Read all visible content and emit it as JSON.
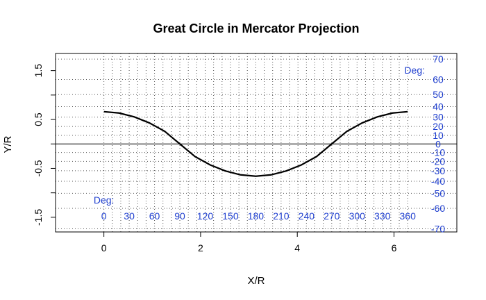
{
  "chart_data": {
    "type": "line",
    "title": "Great Circle in Mercator Projection",
    "xlabel": "X/R",
    "ylabel": "Y/R",
    "xlim": [
      -1.0,
      7.3
    ],
    "ylim": [
      -1.8,
      1.85
    ],
    "x_ticks": [
      0,
      2,
      4,
      6
    ],
    "x_tick_labels": [
      "0",
      "2",
      "4",
      "6"
    ],
    "y_ticks": [
      -1.5,
      -1.0,
      -0.5,
      0.0,
      0.5,
      1.0,
      1.5
    ],
    "y_tick_labels": [
      "-1.5",
      "",
      "-0.5",
      "",
      "0.5",
      "",
      "1.5"
    ],
    "grid": true,
    "longitude_axis": {
      "title": "Deg:",
      "degrees": [
        0,
        30,
        60,
        90,
        120,
        150,
        180,
        210,
        240,
        270,
        300,
        330,
        360
      ],
      "labels": [
        "0",
        "30",
        "60",
        "90",
        "120",
        "150",
        "180",
        "210",
        "240",
        "270",
        "300",
        "330",
        "360"
      ]
    },
    "latitude_axis": {
      "title": "Deg:",
      "degrees": [
        70,
        60,
        50,
        40,
        30,
        20,
        10,
        0,
        -10,
        -20,
        -30,
        -40,
        -50,
        -60,
        -70
      ],
      "labels": [
        "70",
        "60",
        "50",
        "40",
        "30",
        "20",
        "10",
        "0",
        "-10",
        "-20",
        "-30",
        "-40",
        "-50",
        "-60",
        "-70"
      ]
    },
    "series": [
      {
        "line_color": "#000000",
        "x": [
          0,
          0.314,
          0.628,
          0.942,
          1.257,
          1.571,
          1.885,
          2.199,
          2.513,
          2.827,
          3.142,
          3.456,
          3.77,
          4.084,
          4.398,
          4.712,
          5.027,
          5.341,
          5.655,
          5.969,
          6.283
        ],
        "y": [
          0.66,
          0.632,
          0.553,
          0.429,
          0.258,
          0.0,
          -0.258,
          -0.429,
          -0.553,
          -0.632,
          -0.66,
          -0.632,
          -0.553,
          -0.429,
          -0.258,
          0.0,
          0.258,
          0.429,
          0.553,
          0.632,
          0.66
        ]
      }
    ]
  },
  "colors": {
    "curve": "#000000",
    "degree_labels": "#1f3fcf",
    "grid": "#555555"
  }
}
